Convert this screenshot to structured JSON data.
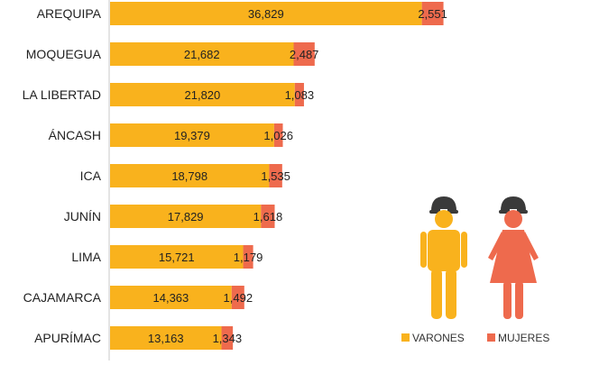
{
  "chart_data": {
    "type": "bar",
    "stacked": true,
    "orientation": "horizontal",
    "categories": [
      "AREQUIPA",
      "MOQUEGUA",
      "LA LIBERTAD",
      "ÁNCASH",
      "ICA",
      "JUNÍN",
      "LIMA",
      "CAJAMARCA",
      "APURÍMAC"
    ],
    "series": [
      {
        "name": "VARONES",
        "color": "#F9B21D",
        "values": [
          36829,
          21682,
          21820,
          19379,
          18798,
          17829,
          15721,
          14363,
          13163
        ],
        "labels": [
          "36,829",
          "21,682",
          "21,820",
          "19,379",
          "18,798",
          "17,829",
          "15,721",
          "14,363",
          "13,163"
        ]
      },
      {
        "name": "MUJERES",
        "color": "#EE6A4D",
        "values": [
          2551,
          2487,
          1083,
          1026,
          1535,
          1618,
          1179,
          1492,
          1343
        ],
        "labels": [
          "2,551",
          "2,487",
          "1,083",
          "1,026",
          "1,535",
          "1,618",
          "1,179",
          "1,492",
          "1,343"
        ]
      }
    ],
    "legend": {
      "position": "bottom-right",
      "items": [
        {
          "label": "VARONES",
          "color": "#F9B21D"
        },
        {
          "label": "MUJERES",
          "color": "#EE6A4D"
        }
      ]
    },
    "grid": false,
    "title": "",
    "xlabel": "",
    "ylabel": "",
    "icons": [
      "male-miner-icon",
      "female-miner-icon"
    ]
  }
}
